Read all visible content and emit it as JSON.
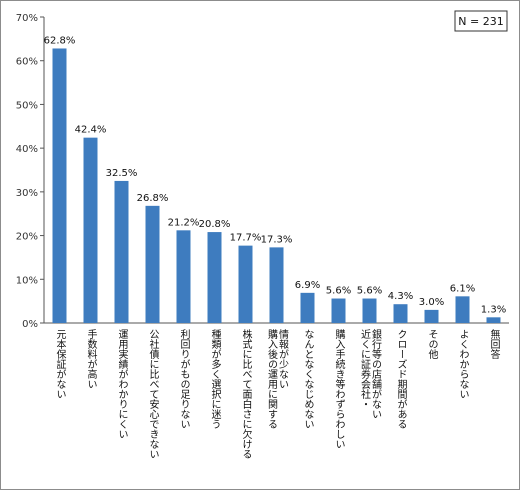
{
  "chart_data": {
    "type": "bar",
    "annotation": "N = 231",
    "categories": [
      "元本保証がない",
      "手数料が高い",
      "運用実績がわかりにくい",
      "公社債に比べて安心できない",
      "利回りがもの足りない",
      "種類が多く選択に迷う",
      "株式に比べて面白さに欠ける",
      "情報が少ない 購入後の運用に関する",
      "なんとなくなじめない",
      "購入手続き等わずらわしい",
      "銀行等の店舗がない 近くに証券会社・",
      "クローズド期間がある",
      "その他",
      "よくわからない",
      "無回答"
    ],
    "values": [
      62.8,
      42.4,
      32.5,
      26.8,
      21.2,
      20.8,
      17.7,
      17.3,
      6.9,
      5.6,
      5.6,
      4.3,
      3.0,
      6.1,
      1.3
    ],
    "value_labels": [
      "62.8%",
      "42.4%",
      "32.5%",
      "26.8%",
      "21.2%",
      "20.8%",
      "17.7%",
      "17.3%",
      "6.9%",
      "5.6%",
      "5.6%",
      "4.3%",
      "3.0%",
      "6.1%",
      "1.3%"
    ],
    "ylim": [
      0,
      70
    ],
    "yticks": [
      "0%",
      "10%",
      "20%",
      "30%",
      "40%",
      "50%",
      "60%",
      "70%"
    ],
    "title": "",
    "xlabel": "",
    "ylabel": "",
    "grid": false,
    "bar_color": "#3e7cbf"
  }
}
